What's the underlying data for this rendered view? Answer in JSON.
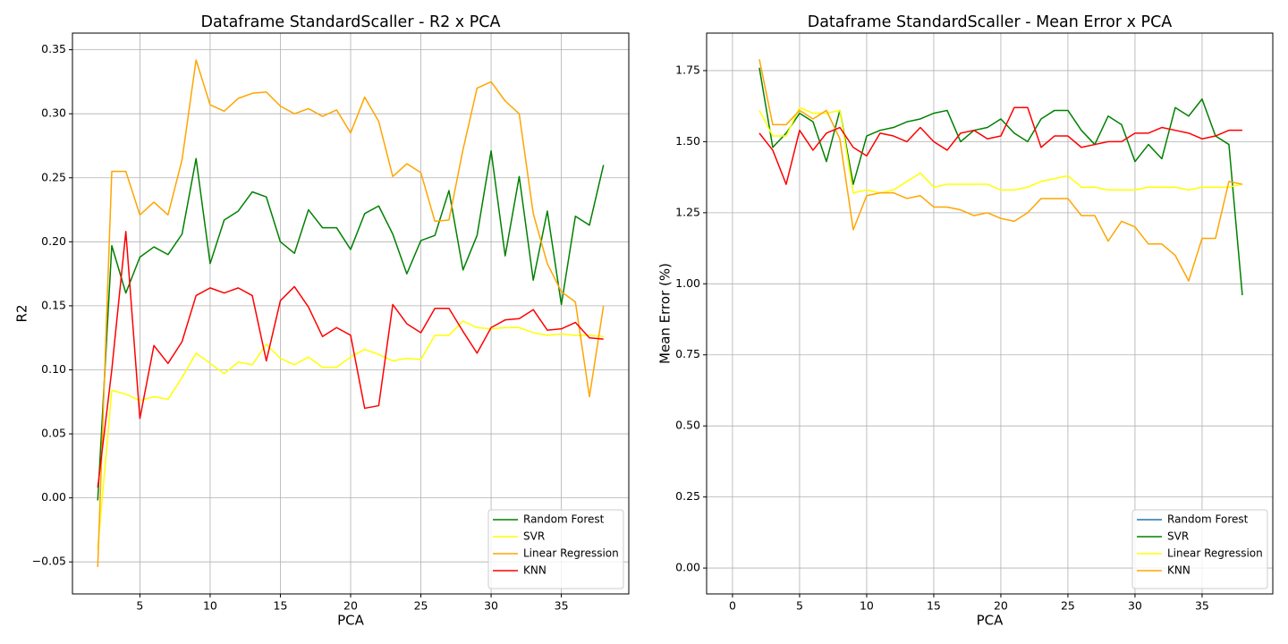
{
  "chart_data": [
    {
      "type": "line",
      "title": "Dataframe StandardScaller - R2 x PCA",
      "x_label": "PCA",
      "y_label": "R2",
      "x": [
        2,
        3,
        4,
        5,
        6,
        7,
        8,
        9,
        10,
        11,
        12,
        13,
        14,
        15,
        16,
        17,
        18,
        19,
        20,
        21,
        22,
        23,
        24,
        25,
        26,
        27,
        28,
        29,
        30,
        31,
        32,
        33,
        34,
        35,
        36,
        37,
        38
      ],
      "series": [
        {
          "name": "Random Forest",
          "color": "green",
          "values": [
            -0.002,
            0.197,
            0.16,
            0.188,
            0.196,
            0.19,
            0.206,
            0.265,
            0.183,
            0.217,
            0.224,
            0.239,
            0.235,
            0.2,
            0.191,
            0.225,
            0.211,
            0.211,
            0.194,
            0.222,
            0.228,
            0.206,
            0.175,
            0.201,
            0.205,
            0.24,
            0.178,
            0.205,
            0.271,
            0.189,
            0.251,
            0.17,
            0.224,
            0.151,
            0.22,
            0.213,
            0.26
          ]
        },
        {
          "name": "SVR",
          "color": "yellow",
          "values": [
            -0.04,
            0.084,
            0.081,
            0.076,
            0.079,
            0.077,
            0.094,
            0.113,
            0.105,
            0.097,
            0.106,
            0.104,
            0.12,
            0.109,
            0.104,
            0.11,
            0.102,
            0.102,
            0.11,
            0.116,
            0.112,
            0.107,
            0.109,
            0.108,
            0.127,
            0.127,
            0.138,
            0.133,
            0.132,
            0.133,
            0.133,
            0.129,
            0.127,
            0.128,
            0.127,
            0.127,
            0.126
          ]
        },
        {
          "name": "Linear Regression",
          "color": "orange",
          "values": [
            -0.054,
            0.255,
            0.255,
            0.221,
            0.231,
            0.221,
            0.264,
            0.342,
            0.307,
            0.302,
            0.312,
            0.316,
            0.317,
            0.306,
            0.3,
            0.304,
            0.298,
            0.303,
            0.285,
            0.313,
            0.294,
            0.251,
            0.261,
            0.254,
            0.216,
            0.217,
            0.272,
            0.32,
            0.325,
            0.31,
            0.3,
            0.222,
            0.183,
            0.161,
            0.153,
            0.079,
            0.15
          ]
        },
        {
          "name": "KNN",
          "color": "red",
          "values": [
            0.008,
            0.1,
            0.208,
            0.062,
            0.119,
            0.105,
            0.122,
            0.158,
            0.164,
            0.16,
            0.164,
            0.158,
            0.107,
            0.154,
            0.165,
            0.149,
            0.126,
            0.133,
            0.127,
            0.07,
            0.072,
            0.151,
            0.136,
            0.129,
            0.148,
            0.148,
            0.13,
            0.113,
            0.133,
            0.139,
            0.14,
            0.147,
            0.131,
            0.132,
            0.137,
            0.125,
            0.124
          ]
        }
      ],
      "xlim": [
        0.2,
        39.8
      ],
      "xticks": [
        5,
        10,
        15,
        20,
        25,
        30,
        35
      ],
      "ylim": [
        -0.075,
        0.363
      ],
      "yticks": [
        {
          "value": -0.05,
          "label": "−0.05"
        },
        {
          "value": 0,
          "label": "0.00"
        },
        {
          "value": 0.05,
          "label": "0.05"
        },
        {
          "value": 0.1,
          "label": "0.10"
        },
        {
          "value": 0.15,
          "label": "0.15"
        },
        {
          "value": 0.2,
          "label": "0.20"
        },
        {
          "value": 0.25,
          "label": "0.25"
        },
        {
          "value": 0.3,
          "label": "0.30"
        },
        {
          "value": 0.35,
          "label": "0.35"
        }
      ],
      "grid": true,
      "legend": "lower right"
    },
    {
      "type": "line",
      "title": "Dataframe StandardScaller - Mean Error x PCA",
      "x_label": "PCA",
      "y_label": "Mean Error (%)",
      "x": [
        2,
        3,
        4,
        5,
        6,
        7,
        8,
        9,
        10,
        11,
        12,
        13,
        14,
        15,
        16,
        17,
        18,
        19,
        20,
        21,
        22,
        23,
        24,
        25,
        26,
        27,
        28,
        29,
        30,
        31,
        32,
        33,
        34,
        35,
        36,
        37,
        38
      ],
      "series": [
        {
          "name": "Random Forest",
          "color": "#1f77b4",
          "values": [
            null,
            null,
            null,
            null,
            null,
            null,
            null,
            null,
            null,
            null,
            null,
            null,
            null,
            null,
            null,
            null,
            null,
            null,
            null,
            null,
            null,
            null,
            null,
            null,
            null,
            null,
            null,
            null,
            null,
            null,
            null,
            null,
            null,
            null,
            null,
            null,
            null
          ]
        },
        {
          "name": "SVR",
          "color": "green",
          "values": [
            1.76,
            1.48,
            1.53,
            1.6,
            1.57,
            1.43,
            1.61,
            1.35,
            1.52,
            1.54,
            1.55,
            1.57,
            1.58,
            1.6,
            1.61,
            1.5,
            1.54,
            1.55,
            1.58,
            1.53,
            1.5,
            1.58,
            1.61,
            1.61,
            1.54,
            1.49,
            1.59,
            1.56,
            1.43,
            1.49,
            1.44,
            1.62,
            1.59,
            1.65,
            1.52,
            1.49,
            0.96
          ]
        },
        {
          "name": "Linear Regression",
          "color": "yellow",
          "values": [
            1.61,
            1.52,
            1.52,
            1.62,
            1.6,
            1.6,
            1.61,
            1.32,
            1.33,
            1.32,
            1.33,
            1.36,
            1.39,
            1.34,
            1.35,
            1.35,
            1.35,
            1.35,
            1.33,
            1.33,
            1.34,
            1.36,
            1.37,
            1.38,
            1.34,
            1.34,
            1.33,
            1.33,
            1.33,
            1.34,
            1.34,
            1.34,
            1.33,
            1.34,
            1.34,
            1.34,
            1.35
          ]
        },
        {
          "name": "KNN",
          "color": "orange",
          "values": [
            1.79,
            1.56,
            1.56,
            1.61,
            1.58,
            1.61,
            1.51,
            1.19,
            1.31,
            1.32,
            1.32,
            1.3,
            1.31,
            1.27,
            1.27,
            1.26,
            1.24,
            1.25,
            1.23,
            1.22,
            1.25,
            1.3,
            1.3,
            1.3,
            1.24,
            1.24,
            1.15,
            1.22,
            1.2,
            1.14,
            1.14,
            1.1,
            1.01,
            1.16,
            1.16,
            1.36,
            1.35
          ]
        },
        {
          "color": "red",
          "values": [
            1.53,
            1.47,
            1.35,
            1.54,
            1.47,
            1.53,
            1.55,
            1.48,
            1.45,
            1.53,
            1.52,
            1.5,
            1.55,
            1.5,
            1.47,
            1.53,
            1.54,
            1.51,
            1.52,
            1.62,
            1.62,
            1.48,
            1.52,
            1.52,
            1.48,
            1.49,
            1.5,
            1.5,
            1.53,
            1.53,
            1.55,
            1.54,
            1.53,
            1.51,
            1.52,
            1.54,
            1.54
          ]
        }
      ],
      "xlim": [
        -1.93,
        40.27
      ],
      "xticks": [
        0,
        5,
        10,
        15,
        20,
        25,
        30,
        35
      ],
      "ylim": [
        -0.091,
        1.882
      ],
      "yticks": [
        {
          "value": 0,
          "label": "0.00"
        },
        {
          "value": 0.25,
          "label": "0.25"
        },
        {
          "value": 0.5,
          "label": "0.50"
        },
        {
          "value": 0.75,
          "label": "0.75"
        },
        {
          "value": 1,
          "label": "1.00"
        },
        {
          "value": 1.25,
          "label": "1.25"
        },
        {
          "value": 1.5,
          "label": "1.50"
        },
        {
          "value": 1.75,
          "label": "1.75"
        }
      ],
      "grid": true,
      "legend": "lower right"
    }
  ]
}
